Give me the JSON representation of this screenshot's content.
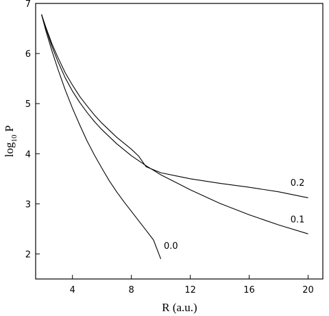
{
  "chart_data": {
    "type": "line",
    "xlabel": "R (a.u.)",
    "ylabel": {
      "main": "log",
      "subscript": "10",
      "suffix": "P"
    },
    "xlim": [
      1.5,
      21
    ],
    "ylim": [
      1.5,
      7
    ],
    "xticks": [
      4,
      8,
      12,
      16,
      20
    ],
    "yticks": [
      2,
      3,
      4,
      5,
      6,
      7
    ],
    "grid": false,
    "line_color": "#000000",
    "series": [
      {
        "name": "0.0",
        "x": [
          1.9,
          2.2,
          2.6,
          3.0,
          3.5,
          4.0,
          4.5,
          5.0,
          5.5,
          6.0,
          6.5,
          7.0,
          7.5,
          8.0,
          8.5,
          9.0,
          9.5,
          10.0
        ],
        "y": [
          6.78,
          6.45,
          6.06,
          5.7,
          5.28,
          4.91,
          4.57,
          4.25,
          3.97,
          3.71,
          3.46,
          3.24,
          3.04,
          2.85,
          2.66,
          2.47,
          2.28,
          1.9
        ]
      },
      {
        "name": "0.1",
        "x": [
          1.9,
          2.2,
          2.6,
          3.0,
          3.5,
          4.0,
          4.5,
          5.0,
          5.5,
          6.0,
          7.0,
          8.0,
          9.0,
          10.0,
          11.0,
          12.0,
          14.0,
          16.0,
          18.0,
          20.0
        ],
        "y": [
          6.78,
          6.5,
          6.15,
          5.85,
          5.52,
          5.25,
          5.02,
          4.82,
          4.64,
          4.48,
          4.2,
          3.96,
          3.76,
          3.58,
          3.43,
          3.28,
          3.01,
          2.78,
          2.58,
          2.4
        ]
      },
      {
        "name": "0.2",
        "x": [
          1.9,
          2.2,
          2.6,
          3.0,
          3.5,
          4.0,
          4.5,
          5.0,
          5.5,
          6.0,
          7.0,
          8.0,
          8.5,
          9.0,
          10.0,
          11.0,
          12.0,
          14.0,
          16.0,
          18.0,
          20.0
        ],
        "y": [
          6.78,
          6.52,
          6.2,
          5.93,
          5.62,
          5.37,
          5.14,
          4.95,
          4.77,
          4.61,
          4.33,
          4.09,
          3.95,
          3.74,
          3.62,
          3.56,
          3.5,
          3.41,
          3.33,
          3.24,
          3.12
        ]
      }
    ],
    "series_labels": [
      {
        "text": "0.0",
        "x": 10.2,
        "y": 2.1
      },
      {
        "text": "0.1",
        "x": 18.8,
        "y": 2.63
      },
      {
        "text": "0.2",
        "x": 18.8,
        "y": 3.36
      }
    ]
  }
}
